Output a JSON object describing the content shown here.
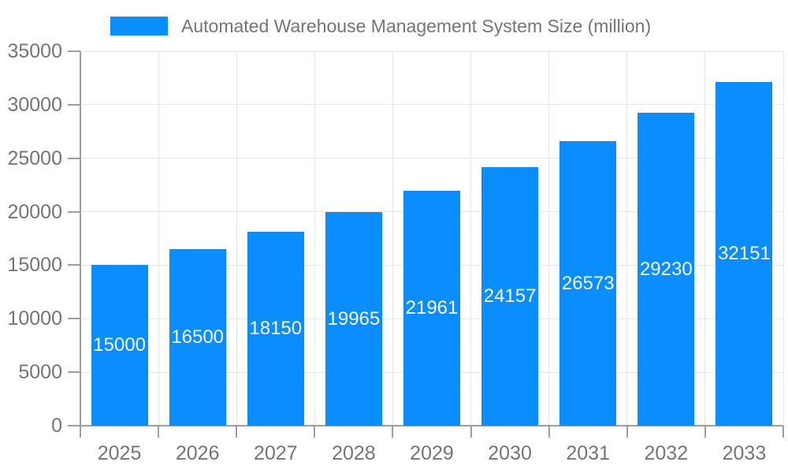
{
  "chart_data": {
    "type": "bar",
    "title": "Automated Warehouse Management System Size (million)",
    "categories": [
      "2025",
      "2026",
      "2027",
      "2028",
      "2029",
      "2030",
      "2031",
      "2032",
      "2033"
    ],
    "values": [
      15000,
      16500,
      18150,
      19965,
      21961,
      24157,
      26573,
      29230,
      32151
    ],
    "value_labels": [
      "15000",
      "16500",
      "18150",
      "19965",
      "21961",
      "24157",
      "26573",
      "29230",
      "32151"
    ],
    "xlabel": "",
    "ylabel": "",
    "ylim": [
      0,
      35000
    ],
    "y_ticks": [
      0,
      5000,
      10000,
      15000,
      20000,
      25000,
      30000,
      35000
    ],
    "grid": "both",
    "legend_position": "top"
  },
  "colors": {
    "bar": "#0A8DFF",
    "grid": "#E6E6E6",
    "axis": "#9E9E9E",
    "tick_text": "#757575",
    "legend_text": "#757575",
    "value_label": "#FFFFFF",
    "background": "#FFFFFF"
  }
}
